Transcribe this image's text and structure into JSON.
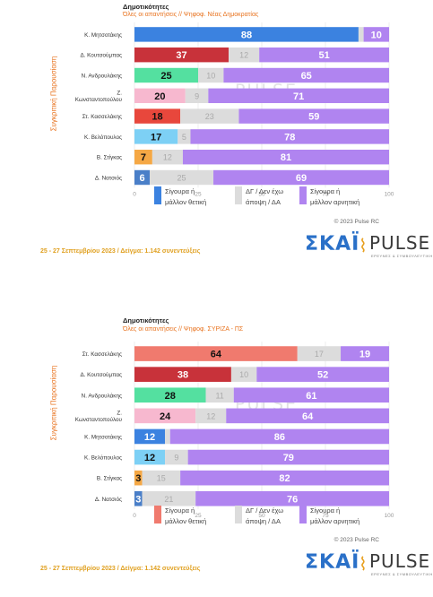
{
  "colors": {
    "positive_nd": "#3b82e0",
    "positive_syriza": "#f07a6e",
    "neutral": "#dcdcdc",
    "negative": "#b084f0",
    "koutsoumpas": "#c8323a",
    "androulakis": "#54e0a0",
    "konstantopoulou": "#f7b8cf",
    "kasselakis_nd": "#e8473c",
    "velopoulos": "#7dd0f5",
    "stigkas": "#f5a845",
    "natsios": "#4a7fc8",
    "mitsotakis_syriza": "#3b82e0",
    "kasselakis_syriza": "#f07a6e"
  },
  "y_axis_label": "Συγκριτική Παρουσίαση",
  "legend_neutral": "ΔΓ / Δεν έχω άποψη / ΔΑ",
  "legend_negative": "Σίγουρα ή μάλλον αρνητική",
  "legend_positive": "Σίγουρα ή μάλλον θετική",
  "copyright": "© 2023 Pulse RC",
  "footer": "25 - 27 Σεπτεμβρίου  2023  /  Δείγμα:  1.142 συνεντεύξεις",
  "logo_skai": "ΣΚΑΪ",
  "logo_pulse": "PULSE",
  "logo_pulse_sub": "ΕΡΕΥΝΕΣ & ΣΥΜΒΟΥΛΕΥΤΙΚΗ",
  "watermark": "PULSE",
  "chart_data": [
    {
      "type": "bar",
      "title": "Δημοτικότητες",
      "subtitle": "Όλες οι απαντήσεις // Ψηφοφ. Νέας Δημοκρατίας",
      "xlim": [
        0,
        100
      ],
      "xticks": [
        "0",
        "25",
        "50",
        "75",
        "100"
      ],
      "categories": [
        "Κ. Μητσοτάκης",
        "Δ. Κουτσούμπας",
        "Ν. Ανδρουλάκης",
        "Ζ. Κωνσταντοπούλου",
        "Στ. Κασσελάκης",
        "Κ. Βελόπουλος",
        "Β. Στίγκας",
        "Δ. Νατσιός"
      ],
      "category_lines": [
        [
          "Κ. Μητσοτάκης"
        ],
        [
          "Δ. Κουτσούμπας"
        ],
        [
          "Ν. Ανδρουλάκης"
        ],
        [
          "Ζ.",
          "Κωνσταντοπούλου"
        ],
        [
          "Στ. Κασσελάκης"
        ],
        [
          "Κ. Βελόπουλος"
        ],
        [
          "Β. Στίγκας"
        ],
        [
          "Δ. Νατσιός"
        ]
      ],
      "series": [
        {
          "name": "Σίγουρα ή μάλλον θετική",
          "values": [
            88,
            37,
            25,
            20,
            18,
            17,
            7,
            6
          ]
        },
        {
          "name": "ΔΓ / Δεν έχω άποψη / ΔΑ",
          "values": [
            2,
            12,
            10,
            9,
            23,
            5,
            12,
            25
          ]
        },
        {
          "name": "Σίγουρα ή μάλλον αρνητική",
          "values": [
            10,
            51,
            65,
            71,
            59,
            78,
            81,
            69
          ]
        }
      ],
      "positive_colors": [
        "mitsotakis_syriza",
        "koutsoumpas",
        "androulakis",
        "konstantopoulou",
        "kasselakis_nd",
        "velopoulos",
        "stigkas",
        "natsios"
      ],
      "neutral_labels": [
        "",
        "12",
        "10",
        "9",
        "23",
        "5",
        "12",
        "25"
      ],
      "legend_positive_color": "positive_nd"
    },
    {
      "type": "bar",
      "title": "Δημοτικότητες",
      "subtitle": "Όλες οι απαντήσεις // Ψηφοφ. ΣΥΡΙΖΑ - ΠΣ",
      "xlim": [
        0,
        100
      ],
      "xticks": [
        "0",
        "25",
        "50",
        "75",
        "100"
      ],
      "categories": [
        "Στ. Κασσελάκης",
        "Δ. Κουτσούμπας",
        "Ν. Ανδρουλάκης",
        "Ζ. Κωνσταντοπούλου",
        "Κ. Μητσοτάκης",
        "Κ. Βελόπουλος",
        "Β. Στίγκας",
        "Δ. Νατσιός"
      ],
      "category_lines": [
        [
          "Στ. Κασσελάκης"
        ],
        [
          "Δ. Κουτσούμπας"
        ],
        [
          "Ν. Ανδρουλάκης"
        ],
        [
          "Ζ.",
          "Κωνσταντοπούλου"
        ],
        [
          "Κ. Μητσοτάκης"
        ],
        [
          "Κ. Βελόπουλος"
        ],
        [
          "Β. Στίγκας"
        ],
        [
          "Δ. Νατσιός"
        ]
      ],
      "series": [
        {
          "name": "Σίγουρα ή μάλλον θετική",
          "values": [
            64,
            38,
            28,
            24,
            12,
            12,
            3,
            3
          ]
        },
        {
          "name": "ΔΓ / Δεν έχω άποψη / ΔΑ",
          "values": [
            17,
            10,
            11,
            12,
            2,
            9,
            15,
            21
          ]
        },
        {
          "name": "Σίγουρα ή μάλλον αρνητική",
          "values": [
            19,
            52,
            61,
            64,
            86,
            79,
            82,
            76
          ]
        }
      ],
      "positive_colors": [
        "kasselakis_syriza",
        "koutsoumpas",
        "androulakis",
        "konstantopoulou",
        "mitsotakis_syriza",
        "velopoulos",
        "stigkas",
        "natsios"
      ],
      "neutral_labels": [
        "17",
        "10",
        "11",
        "12",
        "",
        "9",
        "15",
        "21"
      ],
      "legend_positive_color": "positive_syriza"
    }
  ]
}
